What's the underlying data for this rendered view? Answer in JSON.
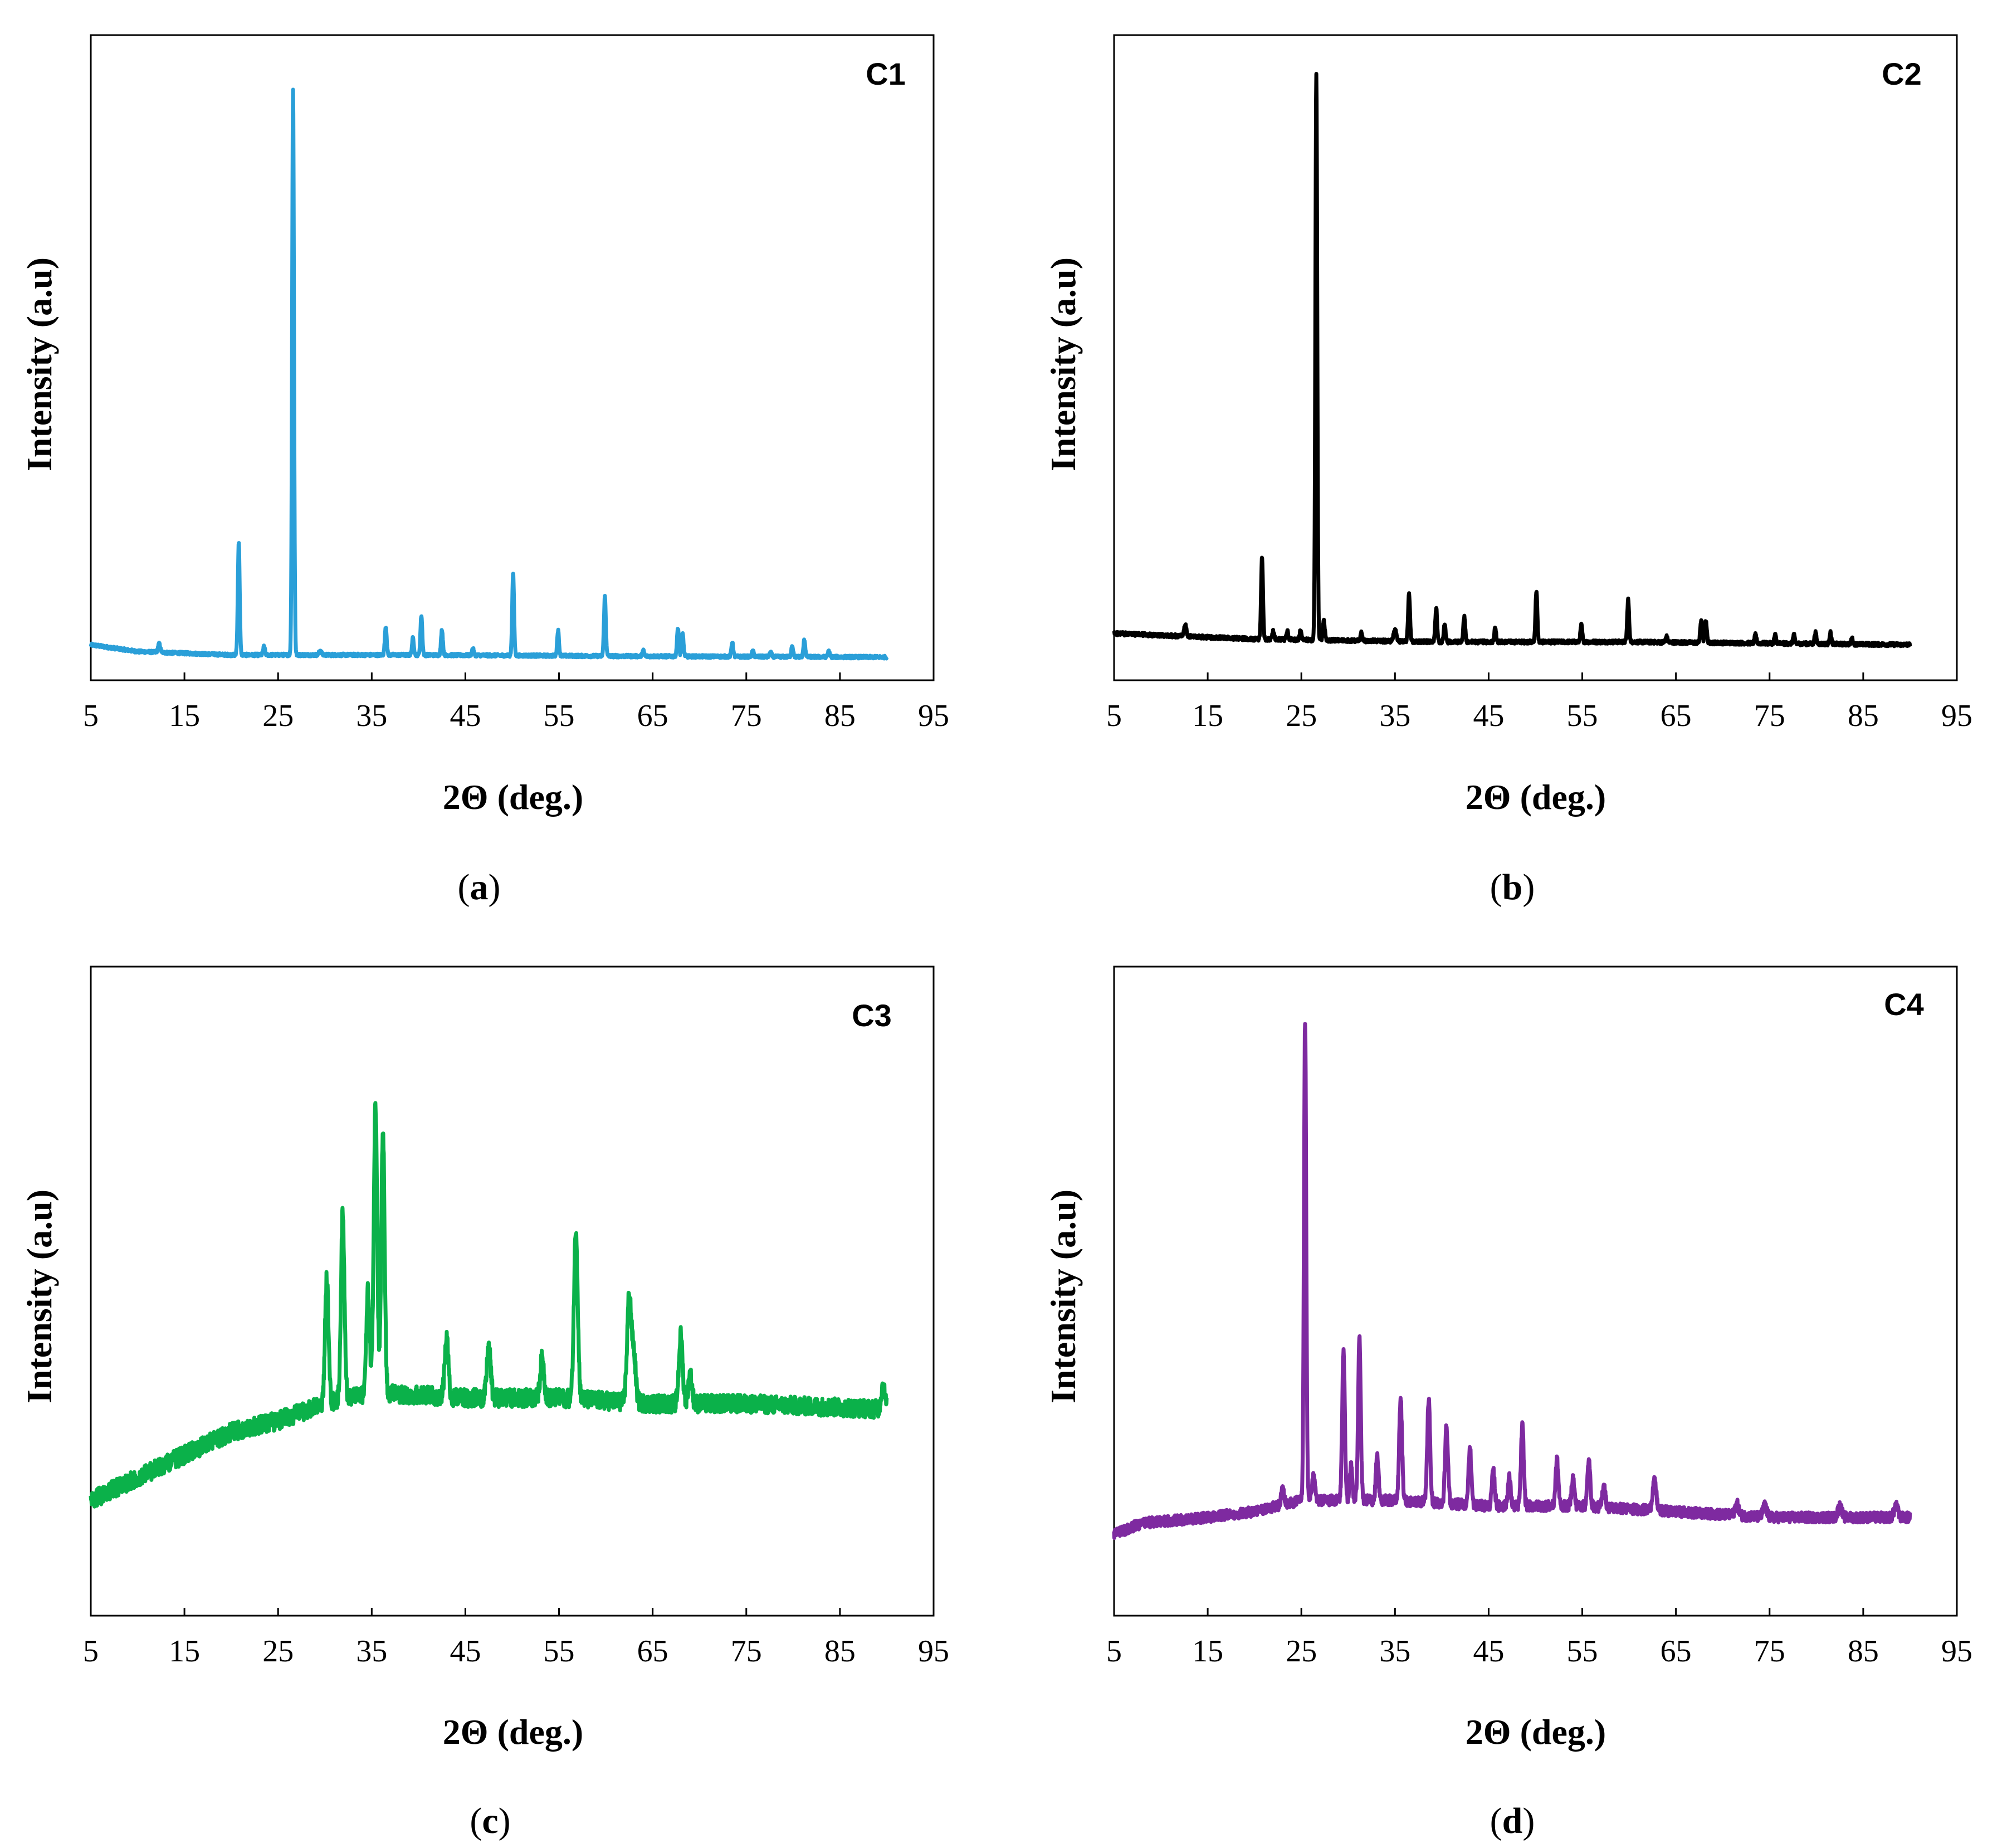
{
  "chart_data": [
    {
      "type": "line",
      "panel_label": "C1",
      "caption": "a",
      "color": "#2a9fd8",
      "xlabel": "2Θ (deg.)",
      "ylabel": "Intensity (a.u)",
      "xlim": [
        5,
        95
      ],
      "ylim": [
        0,
        105
      ],
      "x_ticks": [
        "5",
        "15",
        "25",
        "35",
        "45",
        "55",
        "65",
        "75",
        "85",
        "95"
      ],
      "y_ticks_shown": false,
      "x_range": [
        5,
        90
      ],
      "baseline": [
        [
          5,
          4.0
        ],
        [
          10,
          2.8
        ],
        [
          20,
          2.2
        ],
        [
          40,
          2.2
        ],
        [
          60,
          2.0
        ],
        [
          90,
          1.8
        ]
      ],
      "noise": 0.25,
      "peaks": [
        [
          12.3,
          1.5,
          0.12
        ],
        [
          20.8,
          20,
          0.1
        ],
        [
          23.5,
          1.5,
          0.1
        ],
        [
          26.6,
          100,
          0.1
        ],
        [
          29.5,
          0.8,
          0.12
        ],
        [
          36.5,
          5,
          0.1
        ],
        [
          39.4,
          3,
          0.1
        ],
        [
          40.3,
          7,
          0.1
        ],
        [
          42.5,
          4.5,
          0.1
        ],
        [
          45.8,
          1.2,
          0.1
        ],
        [
          50.1,
          14.5,
          0.1
        ],
        [
          54.9,
          4.5,
          0.1
        ],
        [
          59.9,
          10.5,
          0.1
        ],
        [
          64.0,
          1,
          0.1
        ],
        [
          67.7,
          5,
          0.1
        ],
        [
          68.2,
          4,
          0.1
        ],
        [
          73.5,
          2.5,
          0.1
        ],
        [
          75.7,
          1,
          0.1
        ],
        [
          77.6,
          0.8,
          0.1
        ],
        [
          79.9,
          2,
          0.1
        ],
        [
          81.2,
          3,
          0.1
        ],
        [
          83.8,
          1,
          0.1
        ]
      ]
    },
    {
      "type": "line",
      "panel_label": "C2",
      "caption": "b",
      "color": "#000000",
      "xlabel": "2Θ (deg.)",
      "ylabel": "Intensity (a.u)",
      "xlim": [
        5,
        95
      ],
      "ylim": [
        0,
        105
      ],
      "x_ticks": [
        "5",
        "15",
        "25",
        "35",
        "45",
        "55",
        "65",
        "75",
        "85",
        "95"
      ],
      "y_ticks_shown": false,
      "x_range": [
        5,
        90
      ],
      "baseline": [
        [
          5,
          6.0
        ],
        [
          20,
          5.0
        ],
        [
          40,
          4.5
        ],
        [
          60,
          4.5
        ],
        [
          90,
          4.0
        ]
      ],
      "noise": 0.3,
      "peaks": [
        [
          12.6,
          2,
          0.12
        ],
        [
          20.8,
          14.5,
          0.1
        ],
        [
          22.0,
          1.5,
          0.1
        ],
        [
          23.5,
          1.5,
          0.1
        ],
        [
          24.9,
          1.5,
          0.1
        ],
        [
          26.6,
          100,
          0.1
        ],
        [
          27.4,
          3.5,
          0.1
        ],
        [
          31.4,
          1.5,
          0.1
        ],
        [
          35.0,
          2,
          0.15
        ],
        [
          36.5,
          8.5,
          0.1
        ],
        [
          39.4,
          6,
          0.1
        ],
        [
          40.3,
          3,
          0.1
        ],
        [
          42.4,
          4.5,
          0.1
        ],
        [
          45.7,
          2.5,
          0.1
        ],
        [
          50.1,
          9,
          0.1
        ],
        [
          54.9,
          3,
          0.1
        ],
        [
          59.9,
          7.5,
          0.1
        ],
        [
          64.0,
          1,
          0.1
        ],
        [
          67.7,
          4,
          0.1
        ],
        [
          68.2,
          4,
          0.1
        ],
        [
          73.5,
          1.5,
          0.1
        ],
        [
          75.6,
          1.5,
          0.1
        ],
        [
          77.6,
          1.5,
          0.1
        ],
        [
          79.9,
          2,
          0.1
        ],
        [
          81.5,
          2,
          0.1
        ],
        [
          83.8,
          1,
          0.1
        ]
      ]
    },
    {
      "type": "line",
      "panel_label": "C3",
      "caption": "c",
      "color": "#0bb14a",
      "xlabel": "2Θ (deg.)",
      "ylabel": "Intensity (a.u)",
      "xlim": [
        5,
        95
      ],
      "ylim": [
        0,
        105
      ],
      "x_ticks": [
        "5",
        "15",
        "25",
        "35",
        "45",
        "55",
        "65",
        "75",
        "85",
        "95"
      ],
      "y_ticks_shown": false,
      "x_range": [
        5,
        90
      ],
      "baseline": [
        [
          5,
          18
        ],
        [
          10,
          22
        ],
        [
          15,
          26
        ],
        [
          20,
          30
        ],
        [
          25,
          32
        ],
        [
          30,
          35
        ],
        [
          35,
          37
        ],
        [
          45,
          36
        ],
        [
          55,
          36
        ],
        [
          65,
          35
        ],
        [
          75,
          35
        ],
        [
          90,
          34
        ]
      ],
      "noise": 1.6,
      "peaks": [
        [
          30.2,
          22,
          0.18
        ],
        [
          31.9,
          33,
          0.18
        ],
        [
          34.6,
          18,
          0.18
        ],
        [
          35.4,
          51,
          0.18
        ],
        [
          36.2,
          46,
          0.18
        ],
        [
          43.0,
          10,
          0.2
        ],
        [
          47.5,
          9,
          0.2
        ],
        [
          53.2,
          7,
          0.2
        ],
        [
          56.8,
          30,
          0.2
        ],
        [
          62.5,
          19,
          0.22
        ],
        [
          63.0,
          8,
          0.2
        ],
        [
          68.0,
          12,
          0.2
        ],
        [
          69.0,
          5,
          0.2
        ],
        [
          89.6,
          4,
          0.2
        ]
      ]
    },
    {
      "type": "line",
      "panel_label": "C4",
      "caption": "d",
      "color": "#7e2aa0",
      "xlabel": "2Θ (deg.)",
      "ylabel": "Intensity (a.u)",
      "xlim": [
        5,
        95
      ],
      "ylim": [
        0,
        105
      ],
      "x_ticks": [
        "5",
        "15",
        "25",
        "35",
        "45",
        "55",
        "65",
        "75",
        "85",
        "95"
      ],
      "y_ticks_shown": false,
      "x_range": [
        5,
        90
      ],
      "baseline": [
        [
          5,
          12
        ],
        [
          8,
          14
        ],
        [
          15,
          15
        ],
        [
          20,
          16
        ],
        [
          25,
          18
        ],
        [
          35,
          18
        ],
        [
          45,
          17
        ],
        [
          55,
          17
        ],
        [
          65,
          16
        ],
        [
          75,
          15
        ],
        [
          90,
          15
        ]
      ],
      "noise": 0.9,
      "peaks": [
        [
          23.0,
          3,
          0.15
        ],
        [
          25.4,
          84,
          0.12
        ],
        [
          26.3,
          4,
          0.15
        ],
        [
          29.5,
          26,
          0.14
        ],
        [
          30.3,
          6,
          0.14
        ],
        [
          31.2,
          29,
          0.14
        ],
        [
          33.1,
          8,
          0.14
        ],
        [
          35.6,
          18,
          0.15
        ],
        [
          38.6,
          18,
          0.15
        ],
        [
          40.5,
          14,
          0.15
        ],
        [
          43.0,
          10,
          0.15
        ],
        [
          45.5,
          6,
          0.15
        ],
        [
          47.2,
          5,
          0.15
        ],
        [
          48.6,
          14,
          0.15
        ],
        [
          52.3,
          8,
          0.15
        ],
        [
          54.0,
          5,
          0.15
        ],
        [
          55.7,
          8,
          0.15
        ],
        [
          57.3,
          4,
          0.15
        ],
        [
          62.7,
          5,
          0.2
        ],
        [
          71.5,
          2,
          0.2
        ],
        [
          74.5,
          2,
          0.2
        ],
        [
          82.5,
          2,
          0.2
        ],
        [
          88.5,
          2,
          0.2
        ]
      ]
    }
  ]
}
